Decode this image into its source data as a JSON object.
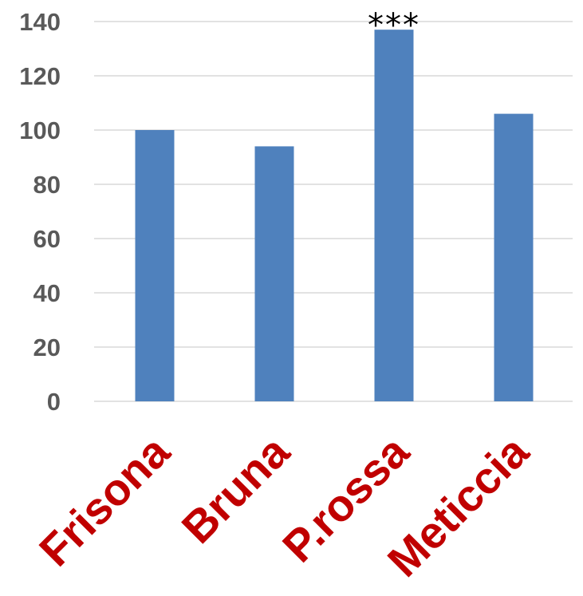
{
  "colors": {
    "bar": "#4F81BD",
    "grid": "#D9D9D9",
    "tick_text": "#595959",
    "category_text": "#C00000",
    "annotation": "#000000"
  },
  "chart_data": {
    "type": "bar",
    "categories": [
      "Frisona",
      "Bruna",
      "P.rossa",
      "Meticcia"
    ],
    "values": [
      100,
      94,
      137,
      106
    ],
    "annotations": [
      {
        "category": "P.rossa",
        "text": "***"
      }
    ],
    "yticks": [
      "0",
      "20",
      "40",
      "60",
      "80",
      "100",
      "120",
      "140"
    ],
    "ylim": [
      0,
      140
    ],
    "grid": true,
    "legend": "none"
  }
}
